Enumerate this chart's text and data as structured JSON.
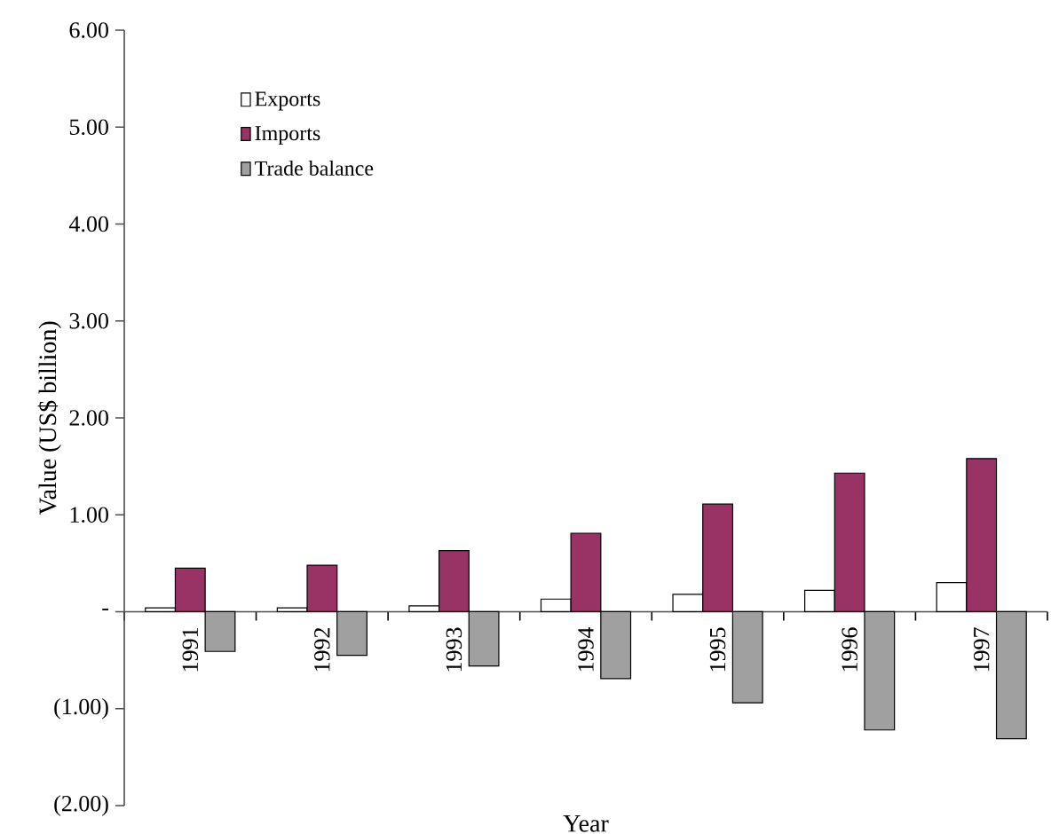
{
  "chart_data": {
    "type": "bar",
    "xlabel": "Year",
    "ylabel": "Value (US$ billion)",
    "categories": [
      "1991",
      "1992",
      "1993",
      "1994",
      "1995",
      "1996",
      "1997"
    ],
    "series": [
      {
        "name": "Exports",
        "color": "#ffffff",
        "values": [
          0.04,
          0.04,
          0.06,
          0.13,
          0.18,
          0.22,
          0.3
        ]
      },
      {
        "name": "Imports",
        "color": "#993366",
        "values": [
          0.45,
          0.48,
          0.63,
          0.81,
          1.11,
          1.43,
          1.58
        ]
      },
      {
        "name": "Trade balance",
        "color": "#a0a0a0",
        "values": [
          -0.41,
          -0.45,
          -0.56,
          -0.69,
          -0.94,
          -1.22,
          -1.31
        ]
      }
    ],
    "ylim": [
      -2,
      6
    ],
    "yticks": [
      {
        "value": -2,
        "label": "(2.00)"
      },
      {
        "value": -1,
        "label": "(1.00)"
      },
      {
        "value": 0,
        "label": "-"
      },
      {
        "value": 1,
        "label": "1.00"
      },
      {
        "value": 2,
        "label": "2.00"
      },
      {
        "value": 3,
        "label": "3.00"
      },
      {
        "value": 4,
        "label": "4.00"
      },
      {
        "value": 5,
        "label": "5.00"
      },
      {
        "value": 6,
        "label": "6.00"
      }
    ],
    "legend": "top left",
    "grid": false
  }
}
